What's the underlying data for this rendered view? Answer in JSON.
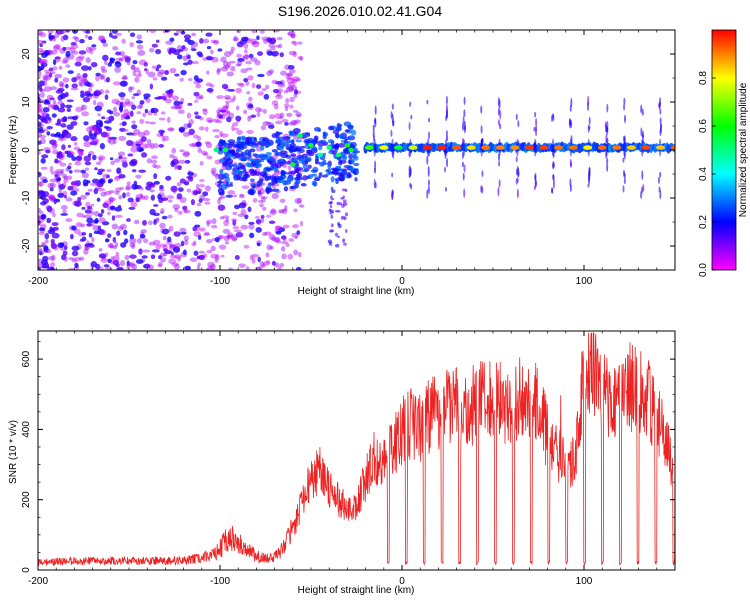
{
  "title": "S196.2026.010.02.41.G04",
  "chart_data": [
    {
      "type": "heatmap",
      "name": "spectrogram",
      "xlabel": "Height of straight line (km)",
      "ylabel": "Frequency (Hz)",
      "xlim": [
        -200,
        150
      ],
      "ylim": [
        -25,
        25
      ],
      "xticks": [
        -200,
        -100,
        0,
        100
      ],
      "xtick_labels": [
        "-200",
        "-100",
        "0",
        "100"
      ],
      "yticks": [
        -20,
        -10,
        0,
        10,
        20
      ],
      "ytick_labels": [
        "-20",
        "-10",
        "0",
        "10",
        "20"
      ],
      "colorbar": {
        "label": "Normalized spectral amplitude",
        "range": [
          0,
          1
        ],
        "ticks": [
          0.0,
          0.2,
          0.4,
          0.6,
          0.8
        ],
        "tick_labels": [
          "0.0",
          "0.2",
          "0.4",
          "0.6",
          "0.8"
        ],
        "colors": [
          "#ff00ff",
          "#0000ff",
          "#00ffff",
          "#00ff00",
          "#ffff00",
          "#ff0000"
        ]
      },
      "features": {
        "noise_region_km": [
          -200,
          -60
        ],
        "signal_onset_km": -60,
        "carrier_frequency_hz": 0.5,
        "carrier_start_km": -20,
        "carrier_end_km": 150
      }
    },
    {
      "type": "line",
      "name": "snr",
      "xlabel": "Height of straight line (km)",
      "ylabel": "SNR (10 * v/v)",
      "xlim": [
        -200,
        150
      ],
      "ylim": [
        0,
        680
      ],
      "xticks": [
        -200,
        -100,
        0,
        100
      ],
      "xtick_labels": [
        "-200",
        "-100",
        "0",
        "100"
      ],
      "yticks": [
        0,
        200,
        400,
        600
      ],
      "ytick_labels": [
        "0",
        "200",
        "400",
        "600"
      ],
      "line_color": "#ee2222",
      "series": [
        {
          "name": "SNR",
          "x": [
            -200,
            -180,
            -160,
            -140,
            -120,
            -105,
            -100,
            -95,
            -90,
            -85,
            -80,
            -75,
            -70,
            -65,
            -60,
            -55,
            -50,
            -45,
            -40,
            -35,
            -30,
            -25,
            -20,
            -15,
            -10,
            -5,
            0,
            5,
            10,
            15,
            20,
            25,
            30,
            35,
            40,
            45,
            50,
            55,
            60,
            65,
            70,
            75,
            80,
            85,
            90,
            95,
            100,
            105,
            110,
            115,
            120,
            125,
            130,
            135,
            140,
            145,
            150
          ],
          "values": [
            22,
            25,
            27,
            26,
            27,
            40,
            60,
            95,
            75,
            55,
            40,
            32,
            38,
            60,
            110,
            190,
            260,
            290,
            230,
            200,
            170,
            180,
            260,
            320,
            300,
            350,
            400,
            420,
            400,
            440,
            450,
            470,
            460,
            440,
            480,
            490,
            500,
            470,
            460,
            490,
            500,
            460,
            380,
            340,
            300,
            320,
            560,
            590,
            510,
            490,
            500,
            520,
            510,
            490,
            420,
            380,
            260
          ]
        }
      ]
    }
  ]
}
